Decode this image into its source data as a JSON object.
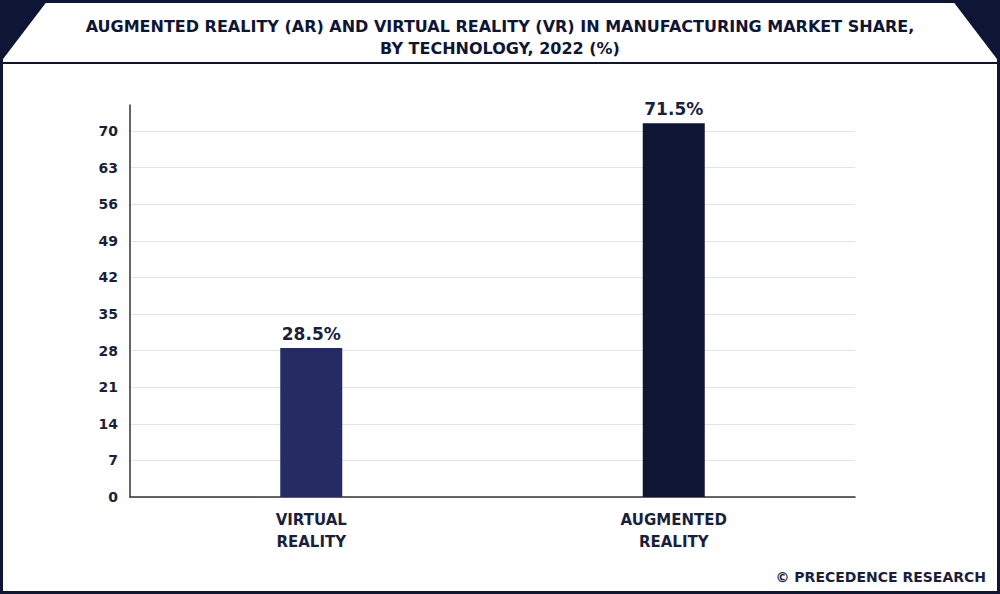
{
  "chart_data": {
    "type": "bar",
    "title": "AUGMENTED REALITY (AR) AND VIRTUAL REALITY (VR) IN MANUFACTURING MARKET SHARE,\nBY TECHNOLOGY, 2022 (%)",
    "categories": [
      "VIRTUAL REALITY",
      "AUGMENTED REALITY"
    ],
    "values": [
      28.5,
      71.5
    ],
    "value_labels": [
      "28.5%",
      "71.5%"
    ],
    "colors": [
      "#252b63",
      "#0e1535"
    ],
    "ylim": [
      0,
      75
    ],
    "yticks": [
      0,
      7,
      14,
      21,
      28,
      35,
      42,
      49,
      56,
      63,
      70
    ],
    "grid": true,
    "data_labels": true,
    "source": "© PRECEDENCE RESEARCH"
  }
}
